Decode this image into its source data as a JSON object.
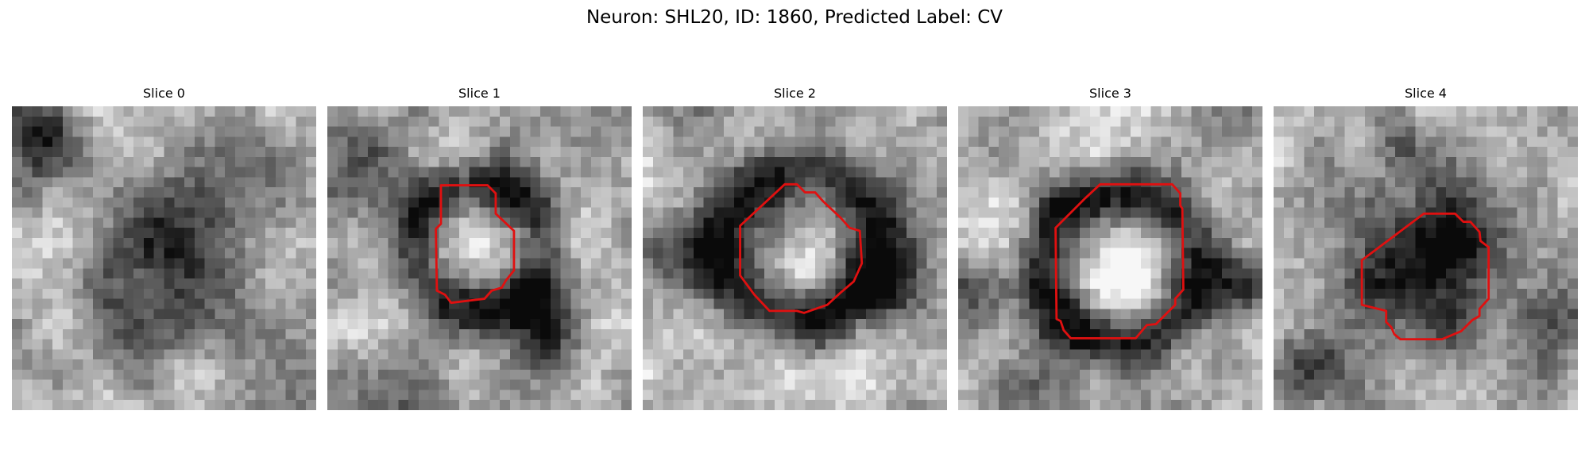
{
  "title": "Neuron: SHL20, ID: 1860, Predicted Label: CV",
  "colors": {
    "contour": "#e01010"
  },
  "panels": [
    {
      "label": "Slice 0"
    },
    {
      "label": "Slice 1"
    },
    {
      "label": "Slice 2"
    },
    {
      "label": "Slice 3"
    },
    {
      "label": "Slice 4"
    }
  ]
}
